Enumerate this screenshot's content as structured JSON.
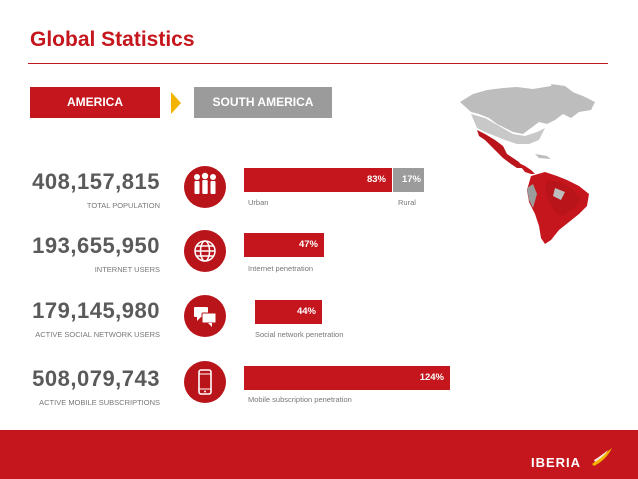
{
  "header": {
    "title": "Global Statistics"
  },
  "tabs": [
    {
      "label": "AMERICA",
      "active": true
    },
    {
      "label": "SOUTH AMERICA",
      "active": false
    }
  ],
  "stats": [
    {
      "value": "408,157,815",
      "label": "TOTAL POPULATION",
      "icon": "people-icon",
      "bars": [
        {
          "pct": 83,
          "text": "83%",
          "color": "#c4161c"
        },
        {
          "pct": 17,
          "text": "17%",
          "color": "#9b9b9b"
        }
      ],
      "bar_labels": [
        "Urban",
        "Rural"
      ]
    },
    {
      "value": "193,655,950",
      "label": "INTERNET USERS",
      "icon": "globe-icon",
      "bars": [
        {
          "pct": 47,
          "text": "47%",
          "color": "#c4161c"
        }
      ],
      "bar_labels": [
        "Internet penetration"
      ]
    },
    {
      "value": "179,145,980",
      "label": "ACTIVE SOCIAL NETWORK USERS",
      "icon": "chat-bubbles-icon",
      "bars": [
        {
          "pct": 44,
          "text": "44%",
          "color": "#c4161c"
        }
      ],
      "bar_labels": [
        "Social network penetration"
      ]
    },
    {
      "value": "508,079,743",
      "label": "ACTIVE MOBILE SUBSCRIPTIONS",
      "icon": "mobile-phone-icon",
      "bars": [
        {
          "pct": 124,
          "text": "124%",
          "color": "#c4161c"
        }
      ],
      "bar_labels": [
        "Mobile subscription penetration"
      ]
    }
  ],
  "footer": {
    "logo_text": "IBERIA"
  },
  "colors": {
    "brand_red": "#c4161c",
    "grey": "#9b9b9b",
    "accent_yellow": "#f2b400"
  }
}
